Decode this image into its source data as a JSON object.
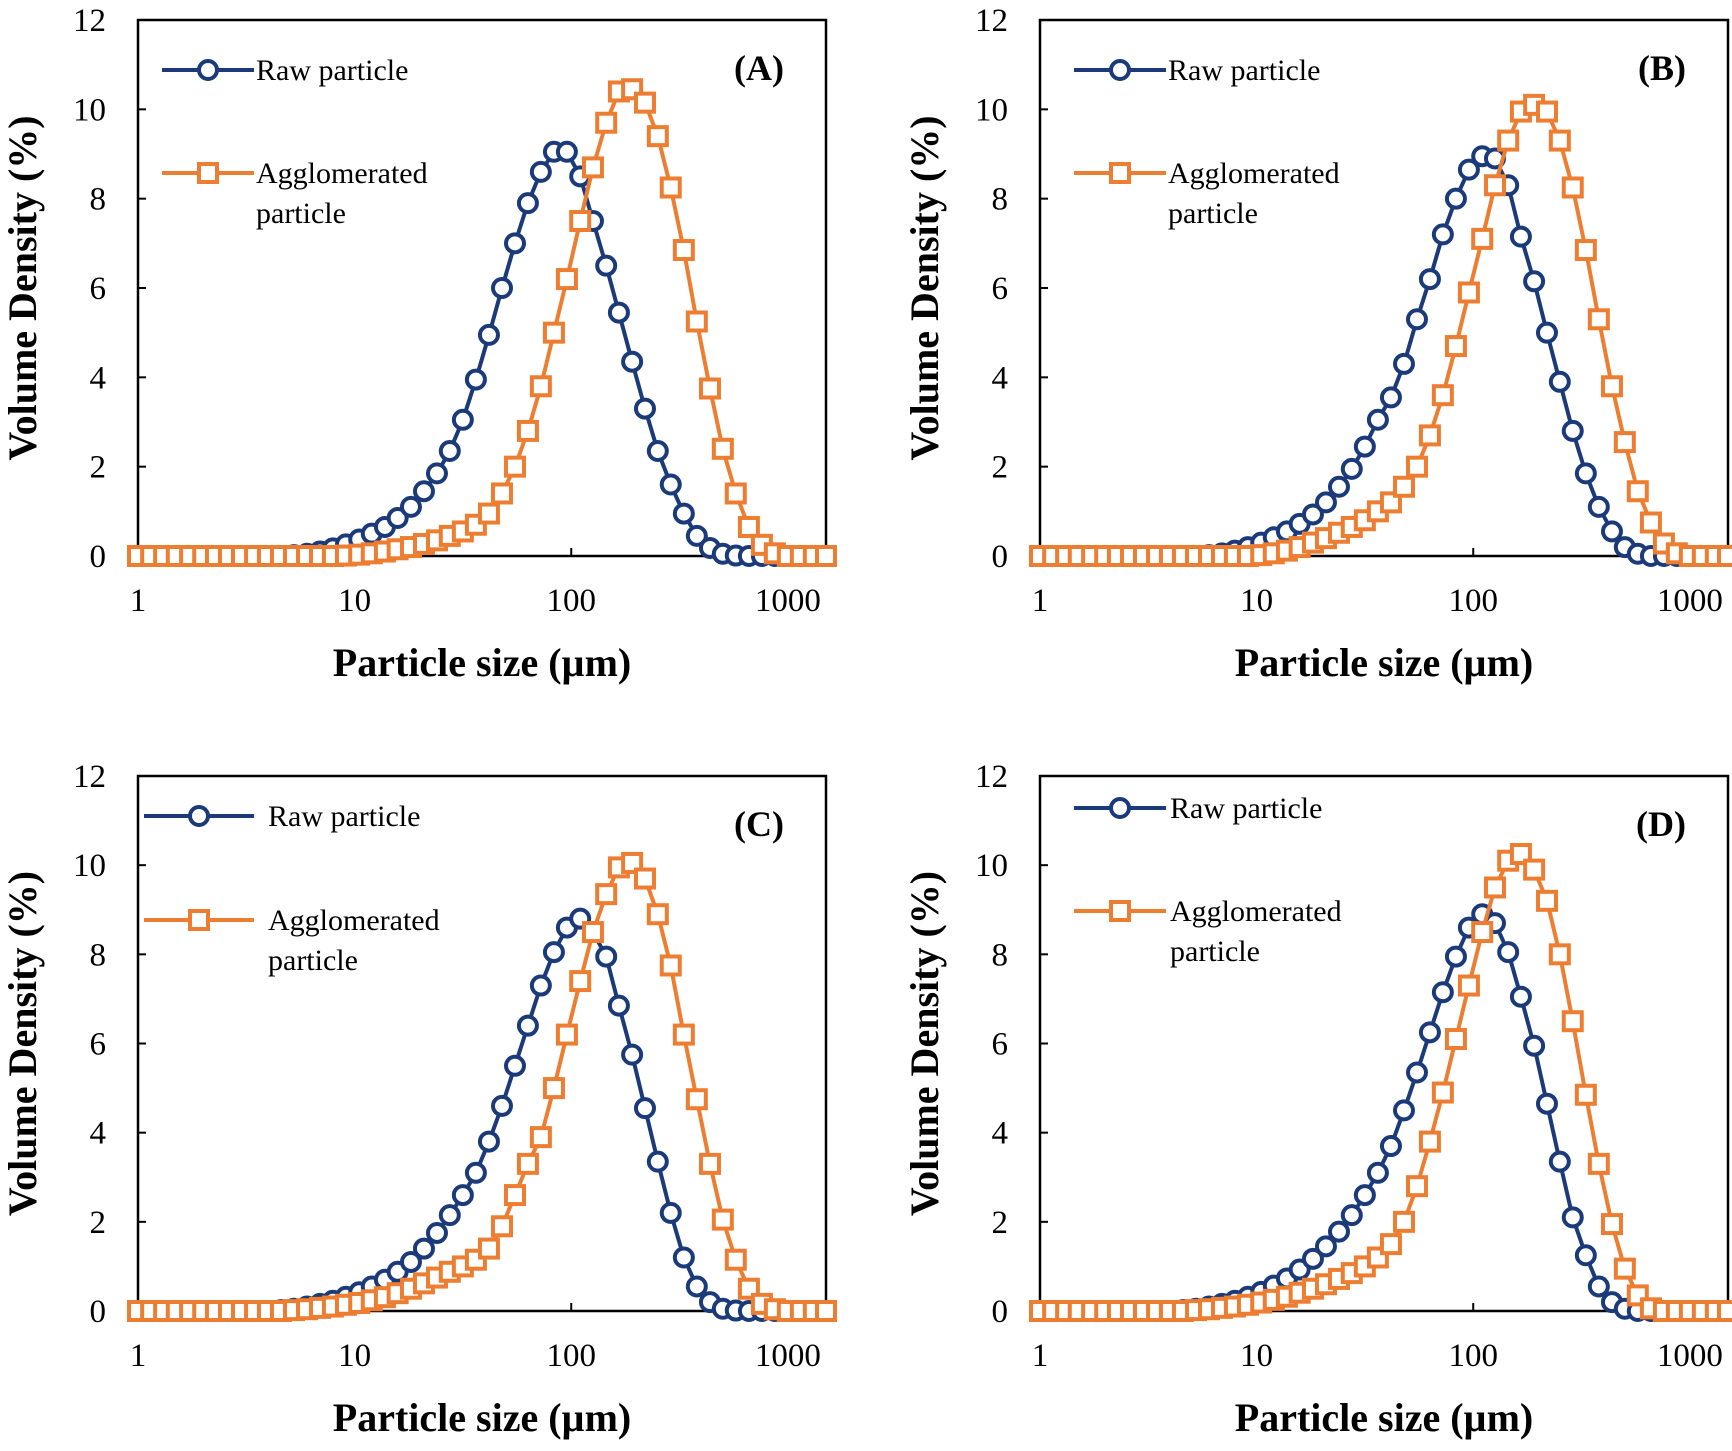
{
  "colors": {
    "raw": "#1b3a7a",
    "agglomerated": "#ed7d31",
    "axis": "#000000"
  },
  "axes": {
    "xlabel": "Particle size (µm)",
    "ylabel": "Volume Density (%)",
    "x_scale": "log",
    "xlim": [
      1,
      1500
    ],
    "ylim": [
      0,
      12
    ],
    "x_ticks": [
      "1",
      "10",
      "100",
      "1000"
    ],
    "y_ticks": [
      "0",
      "2",
      "4",
      "6",
      "8",
      "10",
      "12"
    ]
  },
  "chart_data": [
    {
      "type": "line",
      "panel": "(A)",
      "x_scale": "log",
      "xlim": [
        1,
        1500
      ],
      "ylim": [
        0,
        12
      ],
      "legend": [
        "Raw particle",
        "Agglomerated particle"
      ],
      "series": [
        {
          "name": "Raw particle",
          "marker": "circle",
          "x": [
            1,
            1.15,
            1.32,
            1.51,
            1.74,
            2,
            2.29,
            2.63,
            3.02,
            3.47,
            3.98,
            4.57,
            5.25,
            6.03,
            6.92,
            7.94,
            9.12,
            10.5,
            12,
            13.8,
            15.8,
            18.2,
            20.9,
            24,
            27.5,
            31.6,
            36.3,
            41.7,
            47.9,
            55,
            63.1,
            72.4,
            83.2,
            95.5,
            110,
            126,
            145,
            166,
            191,
            219,
            251,
            288,
            331,
            380,
            437,
            501,
            575,
            661,
            759,
            871,
            1000,
            1148,
            1318,
            1500
          ],
          "y": [
            0,
            0,
            0,
            0,
            0,
            0,
            0,
            0,
            0,
            0,
            0,
            0,
            0.02,
            0.05,
            0.1,
            0.17,
            0.26,
            0.37,
            0.5,
            0.65,
            0.85,
            1.1,
            1.45,
            1.85,
            2.35,
            3.05,
            3.95,
            4.95,
            6.0,
            7.0,
            7.9,
            8.6,
            9.05,
            9.05,
            8.5,
            7.5,
            6.5,
            5.45,
            4.35,
            3.3,
            2.35,
            1.6,
            0.95,
            0.45,
            0.18,
            0.05,
            0.01,
            0,
            0,
            0,
            0,
            0,
            0,
            0
          ]
        },
        {
          "name": "Agglomerated particle",
          "marker": "square",
          "x": [
            1,
            1.15,
            1.32,
            1.51,
            1.74,
            2,
            2.29,
            2.63,
            3.02,
            3.47,
            3.98,
            4.57,
            5.25,
            6.03,
            6.92,
            7.94,
            9.12,
            10.5,
            12,
            13.8,
            15.8,
            18.2,
            20.9,
            24,
            27.5,
            31.6,
            36.3,
            41.7,
            47.9,
            55,
            63.1,
            72.4,
            83.2,
            95.5,
            110,
            126,
            145,
            166,
            191,
            219,
            251,
            288,
            331,
            380,
            437,
            501,
            575,
            661,
            759,
            871,
            1000,
            1148,
            1318,
            1500
          ],
          "y": [
            0,
            0,
            0,
            0,
            0,
            0,
            0,
            0,
            0,
            0,
            0,
            0,
            0,
            0,
            0,
            0,
            0.01,
            0.03,
            0.06,
            0.1,
            0.15,
            0.2,
            0.27,
            0.35,
            0.45,
            0.55,
            0.7,
            0.95,
            1.4,
            2.0,
            2.8,
            3.8,
            5.0,
            6.2,
            7.5,
            8.7,
            9.7,
            10.4,
            10.45,
            10.15,
            9.4,
            8.25,
            6.85,
            5.25,
            3.75,
            2.4,
            1.4,
            0.65,
            0.25,
            0.06,
            0,
            0,
            0,
            0
          ]
        }
      ]
    },
    {
      "type": "line",
      "panel": "(B)",
      "x_scale": "log",
      "xlim": [
        1,
        1500
      ],
      "ylim": [
        0,
        12
      ],
      "legend": [
        "Raw particle",
        "Agglomerated particle"
      ],
      "series": [
        {
          "name": "Raw particle",
          "marker": "circle",
          "x": [
            1,
            1.15,
            1.32,
            1.51,
            1.74,
            2,
            2.29,
            2.63,
            3.02,
            3.47,
            3.98,
            4.57,
            5.25,
            6.03,
            6.92,
            7.94,
            9.12,
            10.5,
            12,
            13.8,
            15.8,
            18.2,
            20.9,
            24,
            27.5,
            31.6,
            36.3,
            41.7,
            47.9,
            55,
            63.1,
            72.4,
            83.2,
            95.5,
            110,
            126,
            145,
            166,
            191,
            219,
            251,
            288,
            331,
            380,
            437,
            501,
            575,
            661,
            759,
            871,
            1000,
            1148,
            1318,
            1500
          ],
          "y": [
            0,
            0,
            0,
            0,
            0,
            0,
            0,
            0,
            0,
            0,
            0,
            0,
            0,
            0.02,
            0.06,
            0.12,
            0.2,
            0.3,
            0.42,
            0.55,
            0.72,
            0.93,
            1.2,
            1.55,
            1.95,
            2.45,
            3.05,
            3.55,
            4.3,
            5.3,
            6.2,
            7.2,
            8.0,
            8.65,
            8.95,
            8.9,
            8.3,
            7.15,
            6.15,
            5.0,
            3.9,
            2.8,
            1.85,
            1.1,
            0.55,
            0.2,
            0.05,
            0,
            0,
            0,
            0,
            0,
            0,
            0
          ]
        },
        {
          "name": "Agglomerated particle",
          "marker": "square",
          "x": [
            1,
            1.15,
            1.32,
            1.51,
            1.74,
            2,
            2.29,
            2.63,
            3.02,
            3.47,
            3.98,
            4.57,
            5.25,
            6.03,
            6.92,
            7.94,
            9.12,
            10.5,
            12,
            13.8,
            15.8,
            18.2,
            20.9,
            24,
            27.5,
            31.6,
            36.3,
            41.7,
            47.9,
            55,
            63.1,
            72.4,
            83.2,
            95.5,
            110,
            126,
            145,
            166,
            191,
            219,
            251,
            288,
            331,
            380,
            437,
            501,
            575,
            661,
            759,
            871,
            1000,
            1148,
            1318,
            1500
          ],
          "y": [
            0,
            0,
            0,
            0,
            0,
            0,
            0,
            0,
            0,
            0,
            0,
            0,
            0,
            0,
            0,
            0,
            0,
            0.02,
            0.06,
            0.12,
            0.2,
            0.3,
            0.4,
            0.52,
            0.65,
            0.8,
            1.0,
            1.2,
            1.55,
            2.0,
            2.7,
            3.6,
            4.7,
            5.9,
            7.1,
            8.3,
            9.3,
            9.95,
            10.1,
            9.95,
            9.3,
            8.25,
            6.85,
            5.3,
            3.8,
            2.55,
            1.45,
            0.75,
            0.28,
            0.06,
            0,
            0,
            0,
            0
          ]
        }
      ]
    },
    {
      "type": "line",
      "panel": "(C)",
      "x_scale": "log",
      "xlim": [
        1,
        1500
      ],
      "ylim": [
        0,
        12
      ],
      "legend": [
        "Raw particle",
        "Agglomerated particle"
      ],
      "series": [
        {
          "name": "Raw particle",
          "marker": "circle",
          "x": [
            1,
            1.15,
            1.32,
            1.51,
            1.74,
            2,
            2.29,
            2.63,
            3.02,
            3.47,
            3.98,
            4.57,
            5.25,
            6.03,
            6.92,
            7.94,
            9.12,
            10.5,
            12,
            13.8,
            15.8,
            18.2,
            20.9,
            24,
            27.5,
            31.6,
            36.3,
            41.7,
            47.9,
            55,
            63.1,
            72.4,
            83.2,
            95.5,
            110,
            126,
            145,
            166,
            191,
            219,
            251,
            288,
            331,
            380,
            437,
            501,
            575,
            661,
            759,
            871,
            1000,
            1148,
            1318,
            1500
          ],
          "y": [
            0,
            0,
            0,
            0,
            0,
            0,
            0,
            0,
            0,
            0,
            0,
            0.02,
            0.05,
            0.1,
            0.16,
            0.23,
            0.32,
            0.42,
            0.55,
            0.7,
            0.88,
            1.1,
            1.4,
            1.75,
            2.15,
            2.6,
            3.1,
            3.8,
            4.6,
            5.5,
            6.4,
            7.3,
            8.05,
            8.6,
            8.8,
            8.5,
            7.95,
            6.85,
            5.75,
            4.55,
            3.35,
            2.2,
            1.2,
            0.55,
            0.2,
            0.05,
            0.01,
            0,
            0,
            0,
            0,
            0,
            0,
            0
          ]
        },
        {
          "name": "Agglomerated particle",
          "marker": "square",
          "x": [
            1,
            1.15,
            1.32,
            1.51,
            1.74,
            2,
            2.29,
            2.63,
            3.02,
            3.47,
            3.98,
            4.57,
            5.25,
            6.03,
            6.92,
            7.94,
            9.12,
            10.5,
            12,
            13.8,
            15.8,
            18.2,
            20.9,
            24,
            27.5,
            31.6,
            36.3,
            41.7,
            47.9,
            55,
            63.1,
            72.4,
            83.2,
            95.5,
            110,
            126,
            145,
            166,
            191,
            219,
            251,
            288,
            331,
            380,
            437,
            501,
            575,
            661,
            759,
            871,
            1000,
            1148,
            1318,
            1500
          ],
          "y": [
            0,
            0,
            0,
            0,
            0,
            0,
            0,
            0,
            0,
            0,
            0,
            0,
            0.02,
            0.04,
            0.07,
            0.1,
            0.14,
            0.18,
            0.24,
            0.31,
            0.4,
            0.5,
            0.62,
            0.75,
            0.88,
            1.0,
            1.15,
            1.4,
            1.9,
            2.6,
            3.3,
            3.9,
            5.0,
            6.2,
            7.4,
            8.5,
            9.35,
            9.95,
            10.05,
            9.7,
            8.9,
            7.75,
            6.2,
            4.75,
            3.3,
            2.05,
            1.15,
            0.5,
            0.16,
            0.04,
            0,
            0,
            0,
            0
          ]
        }
      ]
    },
    {
      "type": "line",
      "panel": "(D)",
      "x_scale": "log",
      "xlim": [
        1,
        1500
      ],
      "ylim": [
        0,
        12
      ],
      "legend": [
        "Raw particle",
        "Agglomerated particle"
      ],
      "series": [
        {
          "name": "Raw particle",
          "marker": "circle",
          "x": [
            1,
            1.15,
            1.32,
            1.51,
            1.74,
            2,
            2.29,
            2.63,
            3.02,
            3.47,
            3.98,
            4.57,
            5.25,
            6.03,
            6.92,
            7.94,
            9.12,
            10.5,
            12,
            13.8,
            15.8,
            18.2,
            20.9,
            24,
            27.5,
            31.6,
            36.3,
            41.7,
            47.9,
            55,
            63.1,
            72.4,
            83.2,
            95.5,
            110,
            126,
            145,
            166,
            191,
            219,
            251,
            288,
            331,
            380,
            437,
            501,
            575,
            661,
            759,
            871,
            1000,
            1148,
            1318,
            1500
          ],
          "y": [
            0,
            0,
            0,
            0,
            0,
            0,
            0,
            0,
            0,
            0,
            0,
            0.02,
            0.05,
            0.1,
            0.16,
            0.23,
            0.32,
            0.43,
            0.57,
            0.73,
            0.93,
            1.17,
            1.45,
            1.78,
            2.15,
            2.6,
            3.1,
            3.7,
            4.5,
            5.35,
            6.25,
            7.15,
            7.95,
            8.6,
            8.9,
            8.7,
            8.05,
            7.05,
            5.95,
            4.65,
            3.35,
            2.1,
            1.25,
            0.55,
            0.2,
            0.05,
            0,
            0,
            0,
            0,
            0,
            0,
            0,
            0
          ]
        },
        {
          "name": "Agglomerated particle",
          "marker": "square",
          "x": [
            1,
            1.15,
            1.32,
            1.51,
            1.74,
            2,
            2.29,
            2.63,
            3.02,
            3.47,
            3.98,
            4.57,
            5.25,
            6.03,
            6.92,
            7.94,
            9.12,
            10.5,
            12,
            13.8,
            15.8,
            18.2,
            20.9,
            24,
            27.5,
            31.6,
            36.3,
            41.7,
            47.9,
            55,
            63.1,
            72.4,
            83.2,
            95.5,
            110,
            126,
            145,
            166,
            191,
            219,
            251,
            288,
            331,
            380,
            437,
            501,
            575,
            661,
            759,
            871,
            1000,
            1148,
            1318,
            1500
          ],
          "y": [
            0,
            0,
            0,
            0,
            0,
            0,
            0,
            0,
            0,
            0,
            0,
            0,
            0.02,
            0.04,
            0.07,
            0.1,
            0.14,
            0.19,
            0.25,
            0.32,
            0.41,
            0.5,
            0.6,
            0.72,
            0.85,
            1.0,
            1.2,
            1.5,
            2.0,
            2.8,
            3.8,
            4.9,
            6.1,
            7.3,
            8.5,
            9.5,
            10.1,
            10.25,
            9.9,
            9.2,
            8.0,
            6.5,
            4.85,
            3.3,
            1.95,
            0.95,
            0.35,
            0.06,
            0,
            0,
            0,
            0,
            0,
            0
          ]
        }
      ]
    }
  ]
}
